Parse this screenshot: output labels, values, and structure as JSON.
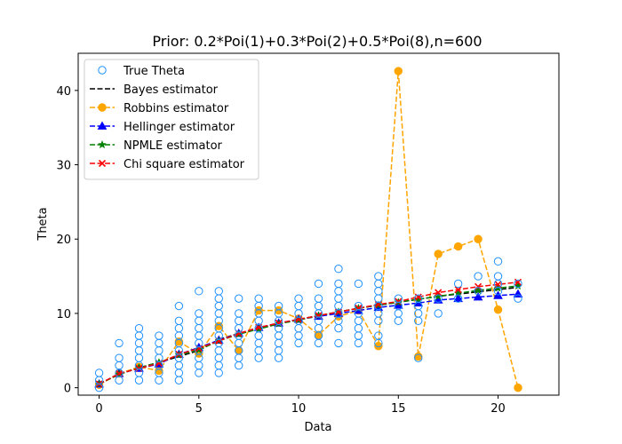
{
  "chart_data": {
    "type": "line",
    "title": "Prior: 0.2*Poi(1)+0.3*Poi(2)+0.5*Poi(8),n=600",
    "xlabel": "Data",
    "ylabel": "Theta",
    "xlim": [
      -1.05,
      23.05
    ],
    "ylim": [
      -1.0,
      45.0
    ],
    "xticks": [
      0,
      5,
      10,
      15,
      20
    ],
    "yticks": [
      0,
      10,
      20,
      30,
      40
    ],
    "legend_position": "top-left",
    "true_theta": {
      "name": "True Theta",
      "color": "#1e90ff",
      "points": [
        [
          0,
          0
        ],
        [
          0,
          1
        ],
        [
          0,
          2
        ],
        [
          1,
          1
        ],
        [
          1,
          2
        ],
        [
          1,
          3
        ],
        [
          1,
          4
        ],
        [
          1,
          6
        ],
        [
          2,
          1
        ],
        [
          2,
          2
        ],
        [
          2,
          3
        ],
        [
          2,
          4
        ],
        [
          2,
          5
        ],
        [
          2,
          6
        ],
        [
          2,
          7
        ],
        [
          2,
          8
        ],
        [
          3,
          1
        ],
        [
          3,
          2
        ],
        [
          3,
          3
        ],
        [
          3,
          4
        ],
        [
          3,
          5
        ],
        [
          3,
          6
        ],
        [
          3,
          7
        ],
        [
          4,
          1
        ],
        [
          4,
          2
        ],
        [
          4,
          3
        ],
        [
          4,
          4
        ],
        [
          4,
          5
        ],
        [
          4,
          6
        ],
        [
          4,
          7
        ],
        [
          4,
          8
        ],
        [
          4,
          9
        ],
        [
          4,
          11
        ],
        [
          5,
          2
        ],
        [
          5,
          3
        ],
        [
          5,
          4
        ],
        [
          5,
          5
        ],
        [
          5,
          6
        ],
        [
          5,
          7
        ],
        [
          5,
          8
        ],
        [
          5,
          9
        ],
        [
          5,
          10
        ],
        [
          5,
          13
        ],
        [
          6,
          2
        ],
        [
          6,
          3
        ],
        [
          6,
          4
        ],
        [
          6,
          5
        ],
        [
          6,
          6
        ],
        [
          6,
          7
        ],
        [
          6,
          8
        ],
        [
          6,
          9
        ],
        [
          6,
          10
        ],
        [
          6,
          11
        ],
        [
          6,
          12
        ],
        [
          6,
          13
        ],
        [
          7,
          3
        ],
        [
          7,
          4
        ],
        [
          7,
          5
        ],
        [
          7,
          6
        ],
        [
          7,
          7
        ],
        [
          7,
          8
        ],
        [
          7,
          9
        ],
        [
          7,
          10
        ],
        [
          7,
          12
        ],
        [
          8,
          4
        ],
        [
          8,
          5
        ],
        [
          8,
          6
        ],
        [
          8,
          7
        ],
        [
          8,
          8
        ],
        [
          8,
          9
        ],
        [
          8,
          10
        ],
        [
          8,
          11
        ],
        [
          8,
          12
        ],
        [
          9,
          4
        ],
        [
          9,
          5
        ],
        [
          9,
          6
        ],
        [
          9,
          7
        ],
        [
          9,
          8
        ],
        [
          9,
          9
        ],
        [
          9,
          10
        ],
        [
          9,
          11
        ],
        [
          10,
          6
        ],
        [
          10,
          7
        ],
        [
          10,
          8
        ],
        [
          10,
          9
        ],
        [
          10,
          10
        ],
        [
          10,
          11
        ],
        [
          10,
          12
        ],
        [
          11,
          6
        ],
        [
          11,
          7
        ],
        [
          11,
          8
        ],
        [
          11,
          9
        ],
        [
          11,
          10
        ],
        [
          11,
          11
        ],
        [
          11,
          12
        ],
        [
          11,
          14
        ],
        [
          12,
          6
        ],
        [
          12,
          8
        ],
        [
          12,
          9
        ],
        [
          12,
          10
        ],
        [
          12,
          11
        ],
        [
          12,
          12
        ],
        [
          12,
          13
        ],
        [
          12,
          14
        ],
        [
          12,
          16
        ],
        [
          13,
          6
        ],
        [
          13,
          7
        ],
        [
          13,
          8
        ],
        [
          13,
          9
        ],
        [
          13,
          10
        ],
        [
          13,
          11
        ],
        [
          13,
          14
        ],
        [
          14,
          6
        ],
        [
          14,
          7
        ],
        [
          14,
          9
        ],
        [
          14,
          10
        ],
        [
          14,
          11
        ],
        [
          14,
          12
        ],
        [
          14,
          13
        ],
        [
          14,
          14
        ],
        [
          14,
          15
        ],
        [
          15,
          9
        ],
        [
          15,
          10
        ],
        [
          15,
          11
        ],
        [
          15,
          12
        ],
        [
          16,
          4
        ],
        [
          16,
          9
        ],
        [
          16,
          10
        ],
        [
          16,
          11
        ],
        [
          16,
          12
        ],
        [
          17,
          10
        ],
        [
          17,
          12
        ],
        [
          18,
          12
        ],
        [
          18,
          14
        ],
        [
          19,
          13
        ],
        [
          19,
          15
        ],
        [
          20,
          13
        ],
        [
          20,
          14
        ],
        [
          20,
          15
        ],
        [
          20,
          17
        ],
        [
          21,
          12
        ],
        [
          21,
          14
        ]
      ]
    },
    "series": [
      {
        "name": "Bayes estimator",
        "color": "#000000",
        "marker": "none",
        "x": [
          0,
          1,
          2,
          3,
          4,
          5,
          6,
          7,
          8,
          9,
          10,
          11,
          12,
          13,
          14,
          15,
          16,
          17,
          18,
          19,
          20,
          21
        ],
        "values": [
          0.5,
          1.8,
          2.7,
          3.4,
          4.2,
          5.0,
          6.5,
          7.3,
          8.0,
          8.6,
          9.2,
          9.7,
          10.2,
          10.7,
          11.1,
          11.5,
          11.9,
          12.3,
          12.6,
          12.9,
          13.2,
          13.5
        ]
      },
      {
        "name": "Robbins estimator",
        "color": "#ffa500",
        "marker": "circle",
        "x": [
          0,
          1,
          2,
          3,
          4,
          5,
          6,
          7,
          8,
          9,
          10,
          11,
          12,
          13,
          14,
          15,
          16,
          17,
          18,
          19,
          20,
          21
        ],
        "values": [
          0.4,
          1.9,
          2.8,
          2.3,
          6.2,
          4.6,
          8.3,
          5.0,
          10.4,
          10.4,
          9.3,
          7.1,
          9.6,
          10.4,
          5.6,
          42.6,
          4.2,
          18.0,
          19.0,
          20.0,
          10.5,
          0.0
        ]
      },
      {
        "name": "Hellinger estimator",
        "color": "#0000ff",
        "marker": "triangle",
        "x": [
          0,
          1,
          2,
          3,
          4,
          5,
          6,
          7,
          8,
          9,
          10,
          11,
          12,
          13,
          14,
          15,
          16,
          17,
          18,
          19,
          20,
          21
        ],
        "values": [
          0.5,
          1.9,
          2.6,
          3.2,
          4.5,
          5.4,
          6.4,
          7.3,
          8.1,
          8.7,
          9.2,
          9.6,
          10.0,
          10.4,
          10.8,
          11.1,
          11.4,
          11.8,
          12.0,
          12.2,
          12.4,
          12.6
        ]
      },
      {
        "name": "NPMLE estimator",
        "color": "#008000",
        "marker": "star",
        "x": [
          0,
          1,
          2,
          3,
          4,
          5,
          6,
          7,
          8,
          9,
          10,
          11,
          12,
          13,
          14,
          15,
          16,
          17,
          18,
          19,
          20,
          21
        ],
        "values": [
          0.5,
          1.8,
          2.7,
          3.4,
          4.4,
          5.1,
          6.3,
          7.2,
          7.9,
          8.6,
          9.1,
          9.7,
          10.2,
          10.7,
          11.1,
          11.5,
          11.9,
          12.3,
          12.7,
          13.1,
          13.4,
          13.7
        ]
      },
      {
        "name": "Chi square estimator",
        "color": "#ff0000",
        "marker": "x",
        "x": [
          0,
          1,
          2,
          3,
          4,
          5,
          6,
          7,
          8,
          9,
          10,
          11,
          12,
          13,
          14,
          15,
          16,
          17,
          18,
          19,
          20,
          21
        ],
        "values": [
          0.5,
          1.9,
          2.6,
          3.3,
          4.5,
          5.3,
          6.3,
          7.3,
          8.1,
          8.7,
          9.2,
          9.7,
          10.2,
          10.7,
          11.2,
          11.6,
          12.2,
          12.8,
          13.2,
          13.6,
          13.9,
          14.2
        ]
      }
    ]
  }
}
